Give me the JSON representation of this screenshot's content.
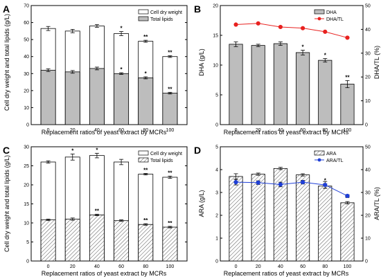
{
  "chart_data": [
    {
      "type": "bar",
      "panel": "A",
      "categories": [
        "0",
        "20",
        "40",
        "60",
        "80",
        "100"
      ],
      "xlabel": "Replacement ratios of yeast extract by MCRs",
      "ylabel": "Cell dry weight and total lipids (g/L)",
      "ylim": [
        0,
        70
      ],
      "yticks": [
        0,
        10,
        20,
        30,
        40,
        50,
        60,
        70
      ],
      "legend_position": "top-right",
      "series": [
        {
          "name": "Cell dry weight",
          "style": "hollow",
          "values": [
            56.5,
            55.0,
            58.0,
            53.5,
            49.0,
            40.0
          ],
          "errors": [
            1.2,
            1.0,
            0.8,
            1.2,
            0.6,
            0.5
          ],
          "sig": [
            "",
            "",
            "",
            "*",
            "**",
            "**"
          ]
        },
        {
          "name": "Total lipids",
          "style": "gray",
          "values": [
            32.0,
            31.0,
            33.0,
            30.0,
            27.5,
            18.5
          ],
          "errors": [
            0.8,
            0.8,
            0.8,
            0.5,
            0.6,
            0.5
          ],
          "sig": [
            "",
            "",
            "",
            "*",
            "*",
            "**"
          ]
        }
      ]
    },
    {
      "type": "bar+line",
      "panel": "B",
      "categories": [
        "0",
        "20",
        "40",
        "60",
        "80",
        "100"
      ],
      "xlabel": "Replacement ratios of yeast extract by MCRs",
      "ylabel": "DHA (g/L)",
      "ylim": [
        0,
        20
      ],
      "yticks": [
        0,
        5,
        10,
        15,
        20
      ],
      "y2label": "DHA/TL (%)",
      "y2lim": [
        0,
        50
      ],
      "y2ticks": [
        0,
        10,
        20,
        30,
        40,
        50
      ],
      "legend_position": "top-right",
      "series": [
        {
          "name": "DHA",
          "style": "gray",
          "axis": "left",
          "values": [
            13.5,
            13.3,
            13.6,
            12.1,
            10.8,
            6.8
          ],
          "errors": [
            0.4,
            0.2,
            0.3,
            0.4,
            0.3,
            0.6
          ],
          "sig": [
            "",
            "",
            "",
            "*",
            "*",
            "**"
          ]
        },
        {
          "name": "DHA/TL",
          "style": "line-red",
          "axis": "right",
          "values": [
            42.0,
            42.5,
            41.0,
            40.5,
            39.0,
            36.5
          ],
          "sig": []
        }
      ]
    },
    {
      "type": "bar",
      "panel": "C",
      "categories": [
        "0",
        "20",
        "40",
        "60",
        "80",
        "100"
      ],
      "xlabel": "Replacement ratios of yeast extract by MCRs",
      "ylabel": "Cell dry weight and total lipids (g/L)",
      "ylim": [
        0,
        30
      ],
      "yticks": [
        0,
        5,
        10,
        15,
        20,
        25,
        30
      ],
      "legend_position": "top-right",
      "series": [
        {
          "name": "Cell dry weight",
          "style": "hollow",
          "values": [
            26.0,
            27.3,
            27.7,
            26.0,
            22.8,
            22.0
          ],
          "errors": [
            0.3,
            0.8,
            0.6,
            0.7,
            0.2,
            0.3
          ],
          "sig": [
            "",
            "*",
            "*",
            "",
            "**",
            "**"
          ]
        },
        {
          "name": "Total lipids",
          "style": "hatched",
          "values": [
            10.8,
            11.0,
            12.1,
            10.6,
            9.6,
            8.9
          ],
          "errors": [
            0.2,
            0.3,
            0.2,
            0.2,
            0.2,
            0.2
          ],
          "sig": [
            "",
            "",
            "**",
            "",
            "**",
            "**"
          ]
        }
      ]
    },
    {
      "type": "bar+line",
      "panel": "D",
      "categories": [
        "0",
        "20",
        "40",
        "60",
        "80",
        "100"
      ],
      "xlabel": "Replacement ratios of yeast extract by MCRs",
      "ylabel": "ARA (g/L)",
      "ylim": [
        0,
        5
      ],
      "yticks": [
        0,
        1,
        2,
        3,
        4,
        5
      ],
      "y2label": "ARA/TL (%)",
      "y2lim": [
        0,
        50
      ],
      "y2ticks": [
        0,
        10,
        20,
        30,
        40,
        50
      ],
      "legend_position": "top-right",
      "series": [
        {
          "name": "ARA",
          "style": "hatched",
          "axis": "left",
          "values": [
            3.7,
            3.8,
            4.05,
            3.77,
            3.28,
            2.55
          ],
          "errors": [
            0.12,
            0.05,
            0.05,
            0.05,
            0.1,
            0.05
          ],
          "sig": [
            "",
            "",
            "",
            "",
            "*",
            "**"
          ]
        },
        {
          "name": "ARA/TL",
          "style": "line-blue",
          "axis": "right",
          "values": [
            34.5,
            34.3,
            33.5,
            34.5,
            33.3,
            28.5
          ],
          "errors": [
            1.2,
            0.8,
            1.0,
            0.8,
            1.5,
            0.5
          ],
          "sig": []
        }
      ]
    }
  ]
}
